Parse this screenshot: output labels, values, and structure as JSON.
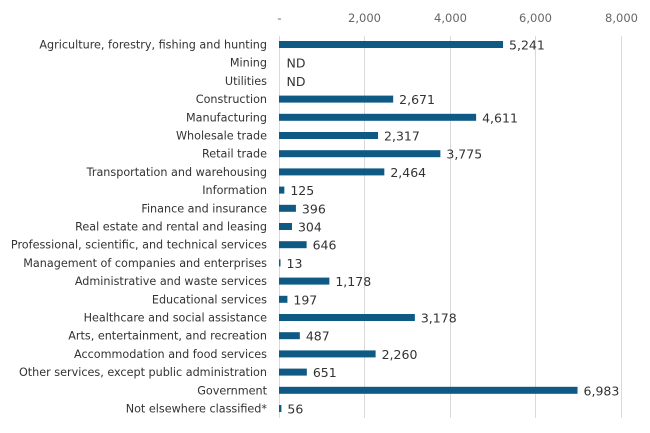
{
  "chart_data": {
    "type": "bar",
    "orientation": "horizontal",
    "title": "",
    "xlabel": "",
    "ylabel": "",
    "xlim": [
      0,
      8000
    ],
    "x_ticks": [
      0,
      2000,
      4000,
      6000,
      8000
    ],
    "x_tick_labels": [
      "-",
      "2,000",
      "4,000",
      "6,000",
      "8,000"
    ],
    "x_axis_position": "top",
    "grid": true,
    "legend": "none",
    "bar_color": "#0f5a84",
    "categories": [
      "Agriculture, forestry, fishing and hunting",
      "Mining",
      "Utilities",
      "Construction",
      "Manufacturing",
      "Wholesale trade",
      "Retail trade",
      "Transportation and warehousing",
      "Information",
      "Finance and insurance",
      "Real estate and rental and leasing",
      "Professional, scientific, and technical services",
      "Management of companies and enterprises",
      "Administrative and waste services",
      "Educational services",
      "Healthcare and social assistance",
      "Arts, entertainment, and recreation",
      "Accommodation and food services",
      "Other services, except public administration",
      "Government",
      "Not elsewhere classified*"
    ],
    "values": [
      5241,
      null,
      null,
      2671,
      4611,
      2317,
      3775,
      2464,
      125,
      396,
      304,
      646,
      13,
      1178,
      197,
      3178,
      487,
      2260,
      651,
      6983,
      56
    ],
    "value_labels": [
      "5,241",
      "ND",
      "ND",
      "2,671",
      "4,611",
      "2,317",
      "3,775",
      "2,464",
      "125",
      "396",
      "304",
      "646",
      "13",
      "1,178",
      "197",
      "3,178",
      "487",
      "2,260",
      "651",
      "6,983",
      "56"
    ]
  }
}
